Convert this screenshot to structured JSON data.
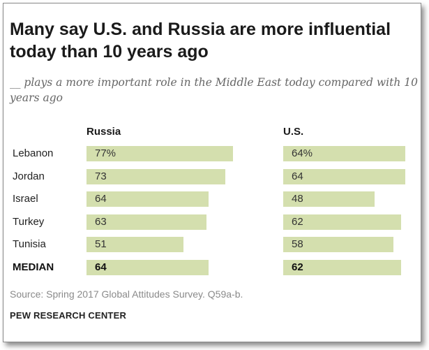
{
  "chart_data": {
    "type": "bar",
    "title": "Many say U.S. and Russia are more influential today than 10 years ago",
    "subtitle": "__ plays a more important role in the Middle East today compared with 10 years ago",
    "categories": [
      "Lebanon",
      "Jordan",
      "Israel",
      "Turkey",
      "Tunisia",
      "MEDIAN"
    ],
    "series": [
      {
        "name": "Russia",
        "values": [
          77,
          73,
          64,
          63,
          51,
          64
        ],
        "labels": [
          "77%",
          "73",
          "64",
          "63",
          "51",
          "64"
        ]
      },
      {
        "name": "U.S.",
        "values": [
          64,
          64,
          48,
          62,
          58,
          62
        ],
        "labels": [
          "64%",
          "64",
          "48",
          "62",
          "58",
          "62"
        ]
      }
    ],
    "orientation": "horizontal",
    "xlim": [
      0,
      100
    ],
    "grid": false,
    "bar_color": "#d4dfae"
  },
  "footer": {
    "source": "Source: Spring 2017 Global Attitudes Survey. Q59a-b.",
    "brand": "PEW RESEARCH CENTER"
  }
}
